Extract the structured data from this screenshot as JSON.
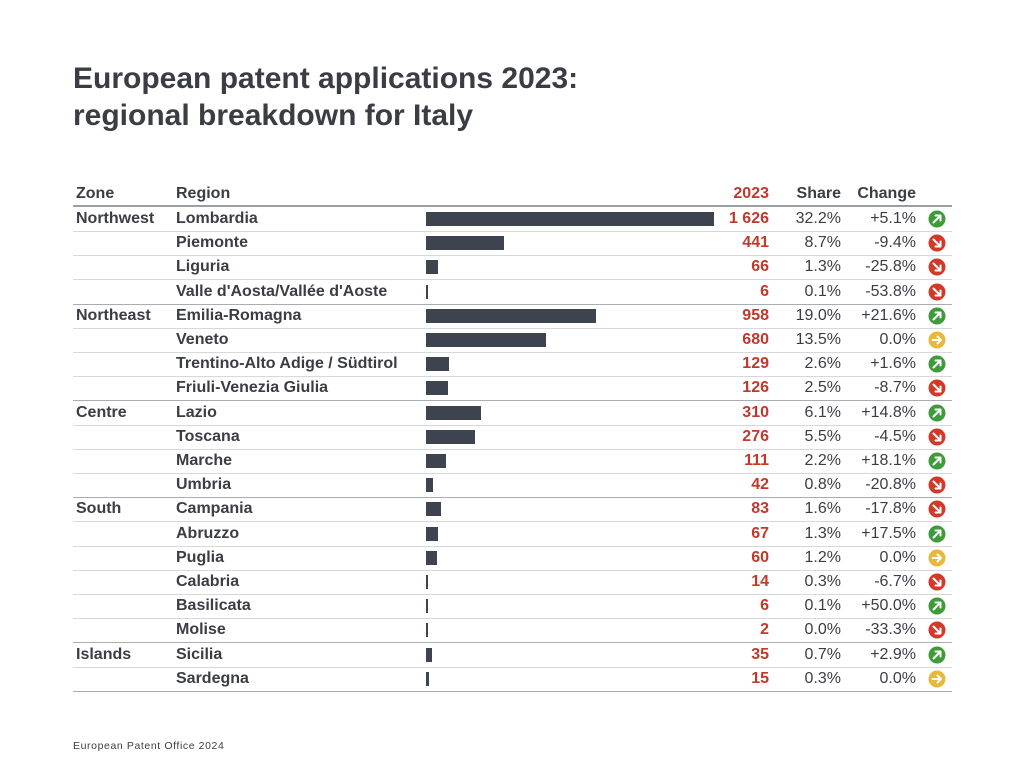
{
  "title_line1": "European patent applications 2023:",
  "title_line2": "regional breakdown for Italy",
  "headers": {
    "zone": "Zone",
    "region": "Region",
    "year": "2023",
    "share": "Share",
    "change": "Change"
  },
  "footer": "European Patent Office 2024",
  "colors": {
    "bar": "#3d4450",
    "value_text": "#c0392b",
    "up": "#3e9b3a",
    "down": "#d13a28",
    "flat": "#e8b83a"
  },
  "chart_data": {
    "type": "bar",
    "title": "European patent applications 2023: regional breakdown for Italy",
    "value_label": "2023",
    "rows": [
      {
        "zone": "Northwest",
        "region": "Lombardia",
        "value": 1626,
        "value_label": "1 626",
        "share": "32.2%",
        "change": "+5.1%",
        "trend": "up"
      },
      {
        "zone": "",
        "region": "Piemonte",
        "value": 441,
        "value_label": "441",
        "share": "8.7%",
        "change": "-9.4%",
        "trend": "down"
      },
      {
        "zone": "",
        "region": "Liguria",
        "value": 66,
        "value_label": "66",
        "share": "1.3%",
        "change": "-25.8%",
        "trend": "down"
      },
      {
        "zone": "",
        "region": "Valle d'Aosta/Vallée d'Aoste",
        "value": 6,
        "value_label": "6",
        "share": "0.1%",
        "change": "-53.8%",
        "trend": "down"
      },
      {
        "zone": "Northeast",
        "region": "Emilia-Romagna",
        "value": 958,
        "value_label": "958",
        "share": "19.0%",
        "change": "+21.6%",
        "trend": "up"
      },
      {
        "zone": "",
        "region": "Veneto",
        "value": 680,
        "value_label": "680",
        "share": "13.5%",
        "change": "0.0%",
        "trend": "flat"
      },
      {
        "zone": "",
        "region": "Trentino-Alto Adige / Südtirol",
        "value": 129,
        "value_label": "129",
        "share": "2.6%",
        "change": "+1.6%",
        "trend": "up"
      },
      {
        "zone": "",
        "region": "Friuli-Venezia Giulia",
        "value": 126,
        "value_label": "126",
        "share": "2.5%",
        "change": "-8.7%",
        "trend": "down"
      },
      {
        "zone": "Centre",
        "region": "Lazio",
        "value": 310,
        "value_label": "310",
        "share": "6.1%",
        "change": "+14.8%",
        "trend": "up"
      },
      {
        "zone": "",
        "region": "Toscana",
        "value": 276,
        "value_label": "276",
        "share": "5.5%",
        "change": "-4.5%",
        "trend": "down"
      },
      {
        "zone": "",
        "region": "Marche",
        "value": 111,
        "value_label": "111",
        "share": "2.2%",
        "change": "+18.1%",
        "trend": "up"
      },
      {
        "zone": "",
        "region": "Umbria",
        "value": 42,
        "value_label": "42",
        "share": "0.8%",
        "change": "-20.8%",
        "trend": "down"
      },
      {
        "zone": "South",
        "region": "Campania",
        "value": 83,
        "value_label": "83",
        "share": "1.6%",
        "change": "-17.8%",
        "trend": "down"
      },
      {
        "zone": "",
        "region": "Abruzzo",
        "value": 67,
        "value_label": "67",
        "share": "1.3%",
        "change": "+17.5%",
        "trend": "up"
      },
      {
        "zone": "",
        "region": "Puglia",
        "value": 60,
        "value_label": "60",
        "share": "1.2%",
        "change": "0.0%",
        "trend": "flat"
      },
      {
        "zone": "",
        "region": "Calabria",
        "value": 14,
        "value_label": "14",
        "share": "0.3%",
        "change": "-6.7%",
        "trend": "down"
      },
      {
        "zone": "",
        "region": "Basilicata",
        "value": 6,
        "value_label": "6",
        "share": "0.1%",
        "change": "+50.0%",
        "trend": "up"
      },
      {
        "zone": "",
        "region": "Molise",
        "value": 2,
        "value_label": "2",
        "share": "0.0%",
        "change": "-33.3%",
        "trend": "down"
      },
      {
        "zone": "Islands",
        "region": "Sicilia",
        "value": 35,
        "value_label": "35",
        "share": "0.7%",
        "change": "+2.9%",
        "trend": "up"
      },
      {
        "zone": "",
        "region": "Sardegna",
        "value": 15,
        "value_label": "15",
        "share": "0.3%",
        "change": "0.0%",
        "trend": "flat"
      }
    ]
  }
}
